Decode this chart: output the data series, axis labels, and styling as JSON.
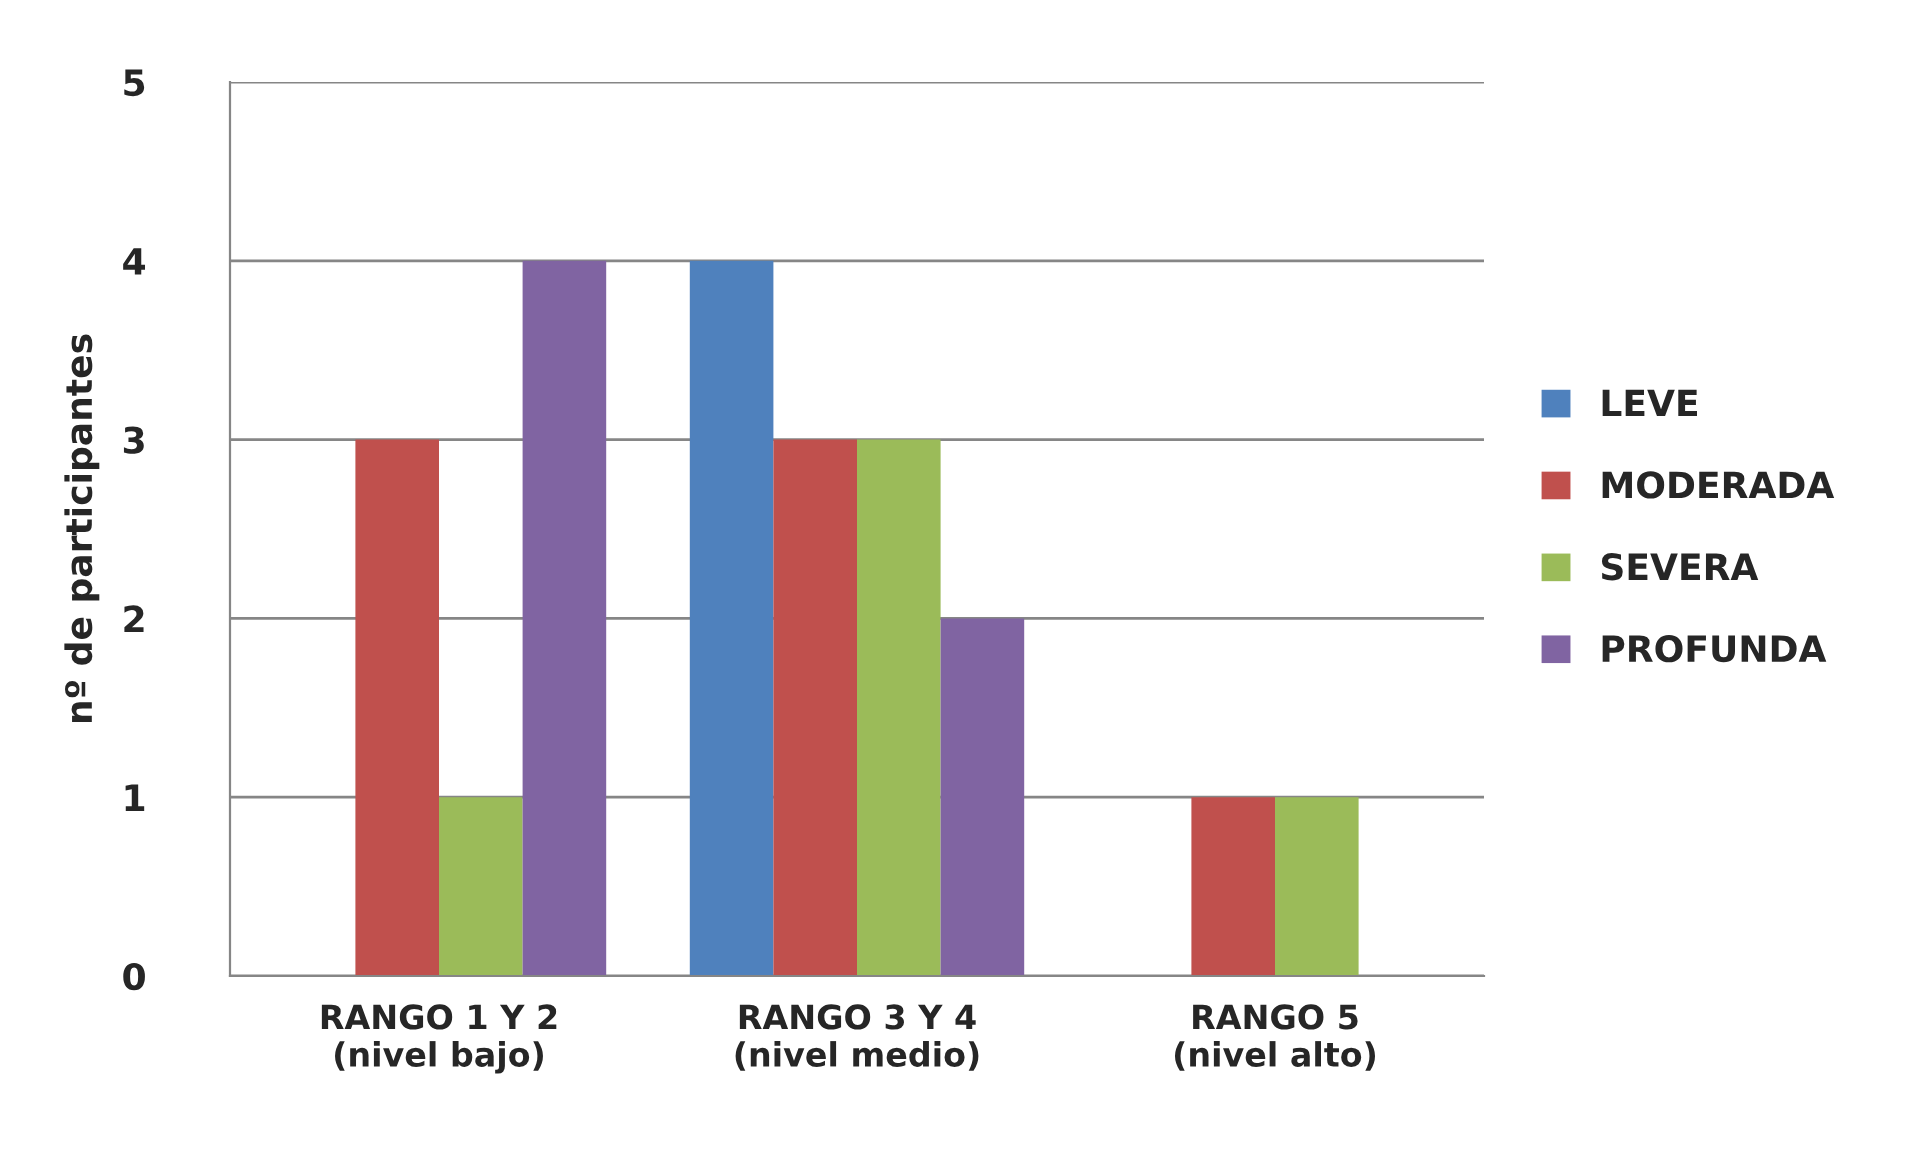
{
  "chart_data": {
    "type": "bar",
    "ylabel": "nº de participantes",
    "categories": [
      "RANGO 1 Y 2\n(nivel bajo)",
      "RANGO 3 Y 4\n(nivel medio)",
      "RANGO 5\n(nivel alto)"
    ],
    "series": [
      {
        "name": "LEVE",
        "color": "#4f81bd",
        "values": [
          0,
          4,
          0
        ]
      },
      {
        "name": "MODERADA",
        "color": "#c0504d",
        "values": [
          3,
          3,
          1
        ]
      },
      {
        "name": "SEVERA",
        "color": "#9bbb59",
        "values": [
          1,
          3,
          1
        ]
      },
      {
        "name": "PROFUNDA",
        "color": "#8064a2",
        "values": [
          4,
          2,
          0
        ]
      }
    ],
    "ylim": [
      0,
      5
    ],
    "yticks": [
      0,
      1,
      2,
      3,
      4,
      5
    ],
    "grid": "y",
    "legend": "right"
  }
}
